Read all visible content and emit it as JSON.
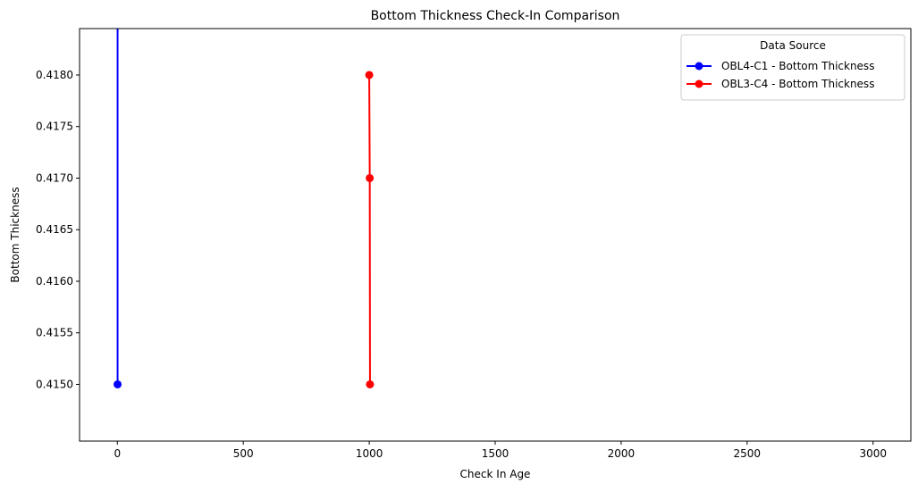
{
  "chart_data": {
    "type": "line",
    "title": "Bottom Thickness Check-In Comparison",
    "xlabel": "Check In Age",
    "ylabel": "Bottom Thickness",
    "xlim": [
      -150,
      3150
    ],
    "ylim": [
      0.41445,
      0.41845
    ],
    "xticks": [
      0,
      500,
      1000,
      1500,
      2000,
      2500,
      3000
    ],
    "xtick_labels": [
      "0",
      "500",
      "1000",
      "1500",
      "2000",
      "2500",
      "3000"
    ],
    "yticks": [
      0.415,
      0.4155,
      0.416,
      0.4165,
      0.417,
      0.4175,
      0.418
    ],
    "ytick_labels": [
      "0.4150",
      "0.4155",
      "0.4160",
      "0.4165",
      "0.4170",
      "0.4175",
      "0.4180"
    ],
    "grid": false,
    "legend": {
      "title": "Data Source",
      "placement": "top-right"
    },
    "series": [
      {
        "name": "OBL4-C1 - Bottom Thickness",
        "color": "#0000ff",
        "marker": "circle",
        "x": [
          1,
          1
        ],
        "y": [
          0.415,
          0.42
        ]
      },
      {
        "name": "OBL3-C4 - Bottom Thickness",
        "color": "#ff0000",
        "marker": "circle",
        "x": [
          1000,
          1002,
          1003
        ],
        "y": [
          0.418,
          0.417,
          0.415
        ]
      }
    ]
  }
}
